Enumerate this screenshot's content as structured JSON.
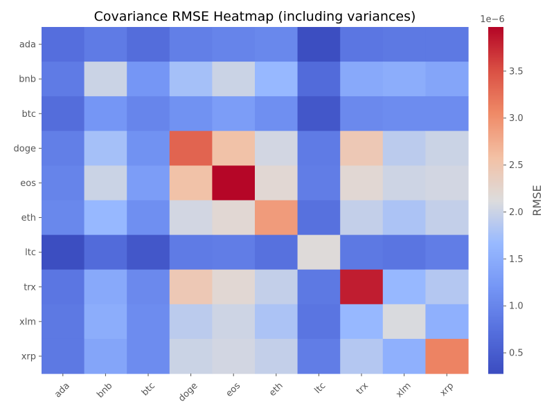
{
  "chart_data": {
    "type": "heatmap",
    "title": "Covariance RMSE Heatmap (including variances)",
    "xlabel": "",
    "ylabel": "",
    "x_categories": [
      "ada",
      "bnb",
      "btc",
      "doge",
      "eos",
      "eth",
      "ltc",
      "trx",
      "xlm",
      "xrp"
    ],
    "y_categories": [
      "ada",
      "bnb",
      "btc",
      "doge",
      "eos",
      "eth",
      "ltc",
      "trx",
      "xlm",
      "xrp"
    ],
    "values": [
      [
        0.72,
        0.88,
        0.7,
        0.92,
        0.98,
        1.03,
        0.3,
        0.82,
        0.85,
        0.85
      ],
      [
        0.88,
        2.0,
        1.2,
        1.75,
        2.0,
        1.65,
        0.68,
        1.45,
        1.5,
        1.4
      ],
      [
        0.7,
        1.2,
        1.0,
        1.15,
        1.3,
        1.12,
        0.42,
        1.05,
        1.08,
        1.08
      ],
      [
        0.92,
        1.75,
        1.15,
        3.35,
        2.55,
        2.05,
        0.88,
        2.45,
        1.9,
        2.0
      ],
      [
        0.98,
        2.0,
        1.3,
        2.55,
        3.96,
        2.2,
        0.9,
        2.2,
        2.02,
        2.05
      ],
      [
        1.03,
        1.65,
        1.12,
        2.05,
        2.2,
        2.9,
        0.75,
        1.95,
        1.8,
        1.95
      ],
      [
        0.3,
        0.68,
        0.42,
        0.88,
        0.9,
        0.75,
        2.15,
        0.85,
        0.8,
        0.9
      ],
      [
        0.82,
        1.45,
        1.05,
        2.45,
        2.2,
        1.95,
        0.85,
        3.82,
        1.65,
        1.85
      ],
      [
        0.85,
        1.5,
        1.08,
        1.9,
        2.02,
        1.8,
        0.8,
        1.65,
        2.1,
        1.55
      ],
      [
        0.85,
        1.4,
        1.08,
        2.0,
        2.05,
        1.95,
        0.9,
        1.85,
        1.55,
        3.1
      ]
    ],
    "colormap": "coolwarm",
    "vmin": 0.28,
    "vmax": 3.97,
    "colorbar": {
      "label": "RMSE",
      "offset_text": "1e−6",
      "ticks": [
        0.5,
        1.0,
        1.5,
        2.0,
        2.5,
        3.0,
        3.5
      ],
      "tick_labels": [
        "0.5",
        "1.0",
        "1.5",
        "2.0",
        "2.5",
        "3.0",
        "3.5"
      ]
    },
    "grid": false
  }
}
